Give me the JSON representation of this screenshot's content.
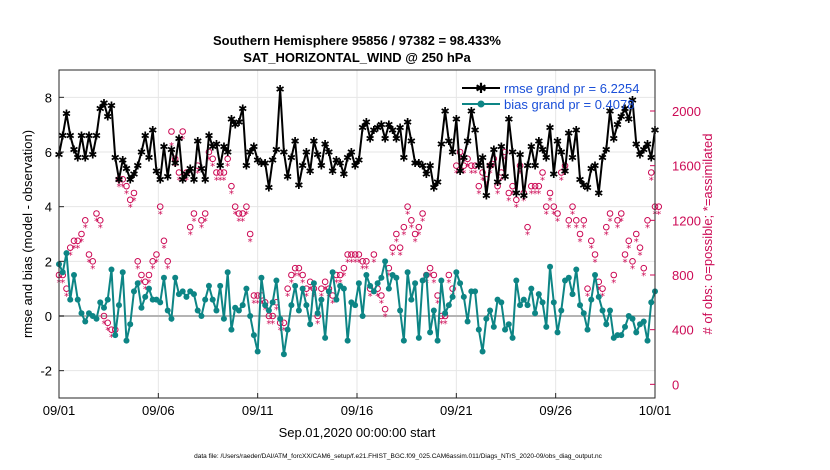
{
  "chart_data": {
    "type": "line",
    "title_line1": "Southern Hemisphere 95856 / 97382 = 98.433%",
    "title_line2": "SAT_HORIZONTAL_WIND @ 250 hPa",
    "xlabel": "Sep.01,2020 00:00:00 start",
    "ylabel_left": "rmse and bias (model - observation)",
    "ylabel_right": "# of obs: o=possible; *=assimilated",
    "footer": "data file: /Users/raeder/DAI/ATM_forcXX/CAM6_setup/f.e21.FHIST_BGC.f09_025.CAM6assim.011/Diags_NTrS_2020-09/obs_diag_output.nc",
    "xlim": [
      0,
      30
    ],
    "ylim_left": [
      -3,
      9
    ],
    "ylim_right": [
      -100,
      2300
    ],
    "x_ticks": [
      0,
      5,
      10,
      15,
      20,
      25,
      30
    ],
    "x_tick_labels": [
      "09/01",
      "09/06",
      "09/11",
      "09/16",
      "09/21",
      "09/26",
      "10/01"
    ],
    "y_ticks_left": [
      -2,
      0,
      2,
      4,
      6,
      8
    ],
    "y_ticks_right": [
      0,
      400,
      800,
      1200,
      1600,
      2000
    ],
    "grid": true,
    "legend_position": "top-right",
    "colors": {
      "rmse": "#000000",
      "bias": "#0d8585",
      "obs": "#cc0a55",
      "zero_line": "#b4b4b4",
      "legend_text": "#1a4fd8"
    },
    "series": [
      {
        "name": "rmse grand pr = 6.2254",
        "axis": "left",
        "y": [
          5.9,
          6.6,
          7.4,
          6.6,
          6.1,
          5.8,
          6.6,
          5.8,
          6.6,
          5.9,
          6.6,
          7.6,
          7.8,
          7.3,
          7.7,
          5.8,
          5.0,
          5.7,
          5.4,
          5.0,
          5.2,
          5.5,
          6.0,
          6.6,
          5.8,
          6.8,
          5.3,
          5.0,
          6.2,
          5.1,
          6.1,
          5.6,
          6.5,
          5.0,
          5.2,
          5.4,
          5.0,
          6.4,
          5.4,
          5.0,
          6.6,
          6.2,
          6.3,
          5.5,
          6.2,
          6.0,
          7.2,
          7.0,
          7.1,
          7.6,
          5.5,
          6.0,
          6.2,
          5.7,
          5.6,
          5.6,
          4.7,
          5.7,
          6.1,
          8.3,
          6.0,
          5.1,
          5.8,
          6.4,
          4.8,
          5.5,
          6.0,
          5.3,
          6.4,
          5.9,
          5.5,
          6.3,
          6.0,
          5.3,
          5.7,
          5.6,
          5.2,
          5.8,
          6.0,
          5.5,
          5.7,
          6.9,
          7.1,
          6.5,
          6.8,
          6.9,
          7.0,
          6.5,
          7.0,
          6.8,
          6.5,
          6.9,
          5.8,
          7.1,
          6.4,
          5.6,
          5.6,
          5.5,
          5.2,
          5.5,
          4.7,
          4.9,
          6.3,
          7.5,
          6.4,
          6.0,
          7.2,
          5.3,
          5.8,
          6.4,
          7.5,
          6.8,
          5.5,
          5.8,
          4.4,
          5.5,
          6.1,
          4.9,
          6.2,
          5.1,
          7.2,
          6.0,
          4.5,
          5.9,
          4.4,
          5.5,
          6.2,
          5.5,
          6.4,
          6.1,
          5.8,
          6.9,
          5.2,
          6.4,
          6.0,
          5.3,
          6.7,
          5.8,
          6.8,
          5.0,
          4.8,
          4.7,
          5.4,
          5.5,
          4.5,
          5.8,
          6.1,
          7.5,
          6.5,
          7.0,
          7.3,
          7.6,
          7.2,
          7.9,
          6.3,
          5.9,
          6.1,
          6.3,
          5.8,
          6.8
        ]
      },
      {
        "name": "bias grand pr = 0.4078",
        "axis": "left",
        "y": [
          1.9,
          1.6,
          2.3,
          0.6,
          1.5,
          0.6,
          0.1,
          -0.2,
          0.1,
          0.0,
          -0.1,
          0.5,
          0.3,
          0.6,
          1.7,
          -0.7,
          0.4,
          1.6,
          -0.9,
          -0.3,
          0.9,
          1.2,
          0.3,
          0.7,
          1.0,
          0.6,
          0.6,
          0.5,
          1.4,
          0.2,
          -0.1,
          1.4,
          0.8,
          0.9,
          0.7,
          0.9,
          0.8,
          0.2,
          0.0,
          0.6,
          1.1,
          0.6,
          0.2,
          1.1,
          -0.1,
          1.6,
          -0.5,
          0.3,
          0.2,
          0.4,
          1.0,
          0.0,
          -0.7,
          -1.3,
          1.4,
          0.4,
          0.2,
          0.5,
          1.3,
          -0.1,
          -1.4,
          -0.5,
          0.4,
          1.1,
          0.2,
          1.0,
          0.4,
          -0.3,
          1.2,
          0.1,
          0.6,
          -0.8,
          0.9,
          1.6,
          0.6,
          1.1,
          1.0,
          -0.9,
          0.5,
          0.4,
          1.2,
          0.0,
          1.5,
          1.1,
          0.9,
          1.2,
          1.4,
          2.0,
          1.0,
          1.5,
          1.4,
          0.2,
          -0.9,
          1.6,
          0.6,
          1.2,
          -0.8,
          1.3,
          1.5,
          -0.6,
          0.2,
          -0.9,
          1.3,
          0.1,
          0.4,
          0.7,
          1.6,
          1.2,
          0.7,
          -0.2,
          0.9,
          0.9,
          -0.5,
          -1.3,
          -0.1,
          0.2,
          -0.4,
          0.6,
          0.5,
          -0.5,
          -0.3,
          -0.8,
          1.3,
          0.4,
          0.6,
          0.4,
          1.0,
          0.1,
          0.8,
          0.5,
          -0.4,
          1.8,
          0.5,
          -0.6,
          0.2,
          1.3,
          1.4,
          0.8,
          1.7,
          0.4,
          0.1,
          -0.5,
          0.6,
          1.5,
          0.7,
          0.2,
          -0.3,
          0.2,
          -0.8,
          -0.7,
          -0.7,
          -0.4,
          0.0,
          -0.1,
          -0.6,
          -0.3,
          -0.2,
          -0.9,
          0.5,
          0.9
        ]
      },
      {
        "name": "possible",
        "axis": "right",
        "marker": "o",
        "y": [
          800,
          800,
          700,
          1000,
          1050,
          1050,
          1100,
          1200,
          950,
          900,
          1250,
          1200,
          500,
          450,
          400,
          400,
          1500,
          1500,
          1450,
          1350,
          1400,
          900,
          800,
          750,
          800,
          900,
          950,
          1300,
          1050,
          900,
          1850,
          1650,
          1550,
          1850,
          1550,
          1150,
          1250,
          1600,
          1200,
          1250,
          1700,
          1650,
          1550,
          1550,
          1550,
          1650,
          1450,
          1300,
          1250,
          1250,
          1300,
          1100,
          650,
          650,
          650,
          600,
          500,
          500,
          600,
          450,
          450,
          700,
          800,
          850,
          850,
          800,
          700,
          750,
          700,
          500,
          700,
          750,
          700,
          650,
          800,
          800,
          850,
          950,
          950,
          950,
          950,
          900,
          900,
          700,
          950,
          700,
          650,
          550,
          850,
          1000,
          1100,
          1000,
          1150,
          1300,
          1200,
          1100,
          1150,
          1250,
          800,
          850,
          800,
          650,
          500,
          500,
          800,
          700,
          1600,
          1700,
          1600,
          1650,
          1600,
          1600,
          1450,
          1550,
          1500,
          1600,
          1650,
          1450,
          1550,
          1700,
          1400,
          1450,
          1350,
          1600,
          1400,
          1150,
          1450,
          1450,
          1450,
          1550,
          1300,
          1400,
          1300,
          1250,
          1550,
          1600,
          1200,
          1300,
          1200,
          1100,
          1200,
          700,
          1050,
          950,
          750,
          700,
          1150,
          1250,
          800,
          1200,
          1250,
          950,
          1050,
          900,
          1100,
          1000,
          850,
          1200,
          1550,
          1300,
          1300
        ]
      },
      {
        "name": "assimilated",
        "axis": "right",
        "marker": "*",
        "y": [
          750,
          750,
          650,
          950,
          1000,
          1000,
          1050,
          1150,
          900,
          850,
          1200,
          1150,
          450,
          400,
          350,
          350,
          1450,
          1450,
          1400,
          1300,
          1350,
          850,
          750,
          700,
          750,
          850,
          900,
          1250,
          1000,
          850,
          1750,
          1600,
          1500,
          1800,
          1500,
          1100,
          1200,
          1550,
          1150,
          1200,
          1650,
          1600,
          1500,
          1500,
          1500,
          1600,
          1400,
          1250,
          1200,
          1200,
          1250,
          1050,
          600,
          600,
          600,
          550,
          450,
          450,
          550,
          400,
          400,
          650,
          750,
          800,
          800,
          750,
          650,
          700,
          650,
          450,
          650,
          700,
          650,
          600,
          750,
          750,
          800,
          900,
          900,
          900,
          900,
          850,
          850,
          650,
          900,
          650,
          600,
          500,
          800,
          950,
          1050,
          950,
          1100,
          1250,
          1150,
          1050,
          1100,
          1200,
          750,
          800,
          750,
          600,
          450,
          450,
          750,
          650,
          1550,
          1650,
          1550,
          1600,
          1550,
          1550,
          1400,
          1500,
          1450,
          1550,
          1600,
          1400,
          1500,
          1650,
          1350,
          1400,
          1300,
          1550,
          1350,
          1100,
          1400,
          1400,
          1400,
          1500,
          1250,
          1350,
          1250,
          1200,
          1500,
          1550,
          1150,
          1250,
          1150,
          1050,
          1150,
          650,
          1000,
          900,
          700,
          650,
          1100,
          1200,
          750,
          1150,
          1200,
          900,
          1000,
          850,
          1050,
          950,
          800,
          1150,
          1500,
          1250,
          1250
        ]
      }
    ]
  }
}
